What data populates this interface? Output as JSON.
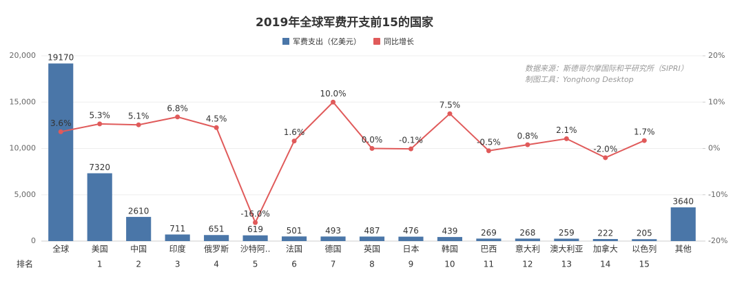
{
  "chart_data": {
    "type": "bar-line",
    "title": "2019年全球军费开支前15的国家",
    "annotations": [
      "数据来源：斯德哥尔摩国际和平研究所（SIPRI）",
      "制图工具：Yonghong Desktop"
    ],
    "categories": [
      "全球",
      "美国",
      "中国",
      "印度",
      "俄罗斯",
      "沙特阿..",
      "法国",
      "德国",
      "英国",
      "日本",
      "韩国",
      "巴西",
      "意大利",
      "澳大利亚",
      "加拿大",
      "以色列",
      "其他"
    ],
    "rank_label": "排名",
    "ranks": [
      null,
      1,
      2,
      3,
      4,
      5,
      6,
      7,
      8,
      9,
      10,
      11,
      12,
      13,
      14,
      15,
      null
    ],
    "series": [
      {
        "name": "军费支出（亿美元）",
        "color": "#4a76a8",
        "kind": "bar",
        "values": [
          19170,
          7320,
          2610,
          711,
          651,
          619,
          501,
          493,
          487,
          476,
          439,
          269,
          268,
          259,
          222,
          205,
          3640
        ]
      },
      {
        "name": "同比增长",
        "color": "#e05a5a",
        "kind": "line",
        "axis": "y2",
        "values": [
          3.6,
          5.3,
          5.1,
          6.8,
          4.5,
          -16.0,
          1.6,
          10.0,
          0.0,
          -0.1,
          7.5,
          -0.5,
          0.8,
          2.1,
          -2.0,
          1.7,
          null
        ],
        "value_labels": [
          "3.6%",
          "5.3%",
          "5.1%",
          "6.8%",
          "4.5%",
          "-16.0%",
          "1.6%",
          "10.0%",
          "0.0%",
          "-0.1%",
          "7.5%",
          "-0.5%",
          "0.8%",
          "2.1%",
          "-2.0%",
          "1.7%",
          null
        ]
      }
    ],
    "ylim": [
      0,
      20000
    ],
    "yticks": [
      0,
      {
        "value": 5000,
        "label": "5,000"
      },
      {
        "value": 10000,
        "label": "10,000"
      },
      {
        "value": 15000,
        "label": "15,000"
      },
      {
        "value": 20000,
        "label": "20,000"
      }
    ],
    "y2lim": [
      -20,
      20
    ],
    "y2ticks": [
      {
        "value": -20,
        "label": "-20%"
      },
      {
        "value": -10,
        "label": "-10%"
      },
      {
        "value": 0,
        "label": "0%"
      },
      {
        "value": 10,
        "label": "10%"
      },
      {
        "value": 20,
        "label": "20%"
      }
    ],
    "grid": true
  }
}
